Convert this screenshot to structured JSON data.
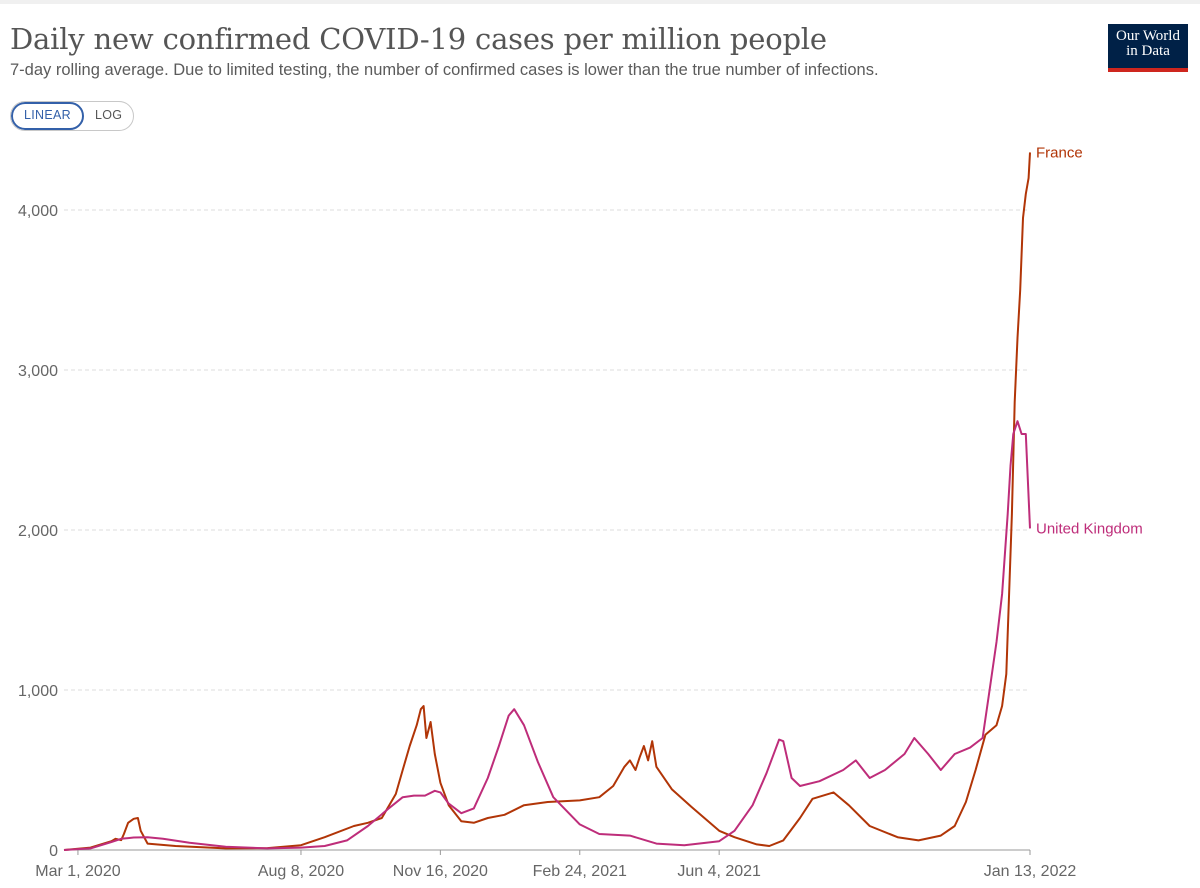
{
  "header": {
    "title": "Daily new confirmed COVID-19 cases per million people",
    "subtitle": "7-day rolling average. Due to limited testing, the number of confirmed cases is lower than the true number of infections.",
    "logo_line1": "Our World",
    "logo_line2": "in Data"
  },
  "controls": {
    "linear_label": "LINEAR",
    "log_label": "LOG",
    "selected": "LINEAR"
  },
  "colors": {
    "france": "#b13507",
    "united_kingdom": "#be2d7a",
    "grid": "#dddddd",
    "logo_bg": "#002147",
    "logo_bar": "#ce261e",
    "accent": "#3360a9"
  },
  "chart_data": {
    "type": "line",
    "title": "Daily new confirmed COVID-19 cases per million people",
    "x_type": "date",
    "xlim": [
      "2020-02-20",
      "2022-01-13"
    ],
    "ylim": [
      0,
      4400
    ],
    "y_ticks": [
      0,
      1000,
      2000,
      3000,
      4000
    ],
    "y_tick_labels": [
      "0",
      "1,000",
      "2,000",
      "3,000",
      "4,000"
    ],
    "x_ticks": [
      "2020-03-01",
      "2020-08-08",
      "2020-11-16",
      "2021-02-24",
      "2021-06-04",
      "2022-01-13"
    ],
    "x_tick_labels": [
      "Mar 1, 2020",
      "Aug 8, 2020",
      "Nov 16, 2020",
      "Feb 24, 2021",
      "Jun 4, 2021",
      "Jan 13, 2022"
    ],
    "grid": "horizontal dashed",
    "legend": "inline labels at line ends (right)",
    "series": [
      {
        "name": "France",
        "color": "#b13507",
        "points": [
          [
            "2020-02-20",
            0
          ],
          [
            "2020-03-10",
            15
          ],
          [
            "2020-03-25",
            55
          ],
          [
            "2020-03-28",
            70
          ],
          [
            "2020-04-01",
            62
          ],
          [
            "2020-04-03",
            100
          ],
          [
            "2020-04-06",
            170
          ],
          [
            "2020-04-10",
            195
          ],
          [
            "2020-04-13",
            200
          ],
          [
            "2020-04-15",
            120
          ],
          [
            "2020-04-20",
            40
          ],
          [
            "2020-05-10",
            25
          ],
          [
            "2020-06-15",
            10
          ],
          [
            "2020-07-15",
            12
          ],
          [
            "2020-08-08",
            30
          ],
          [
            "2020-08-25",
            80
          ],
          [
            "2020-09-15",
            150
          ],
          [
            "2020-09-25",
            170
          ],
          [
            "2020-10-05",
            200
          ],
          [
            "2020-10-15",
            350
          ],
          [
            "2020-10-20",
            500
          ],
          [
            "2020-10-25",
            650
          ],
          [
            "2020-10-30",
            780
          ],
          [
            "2020-11-02",
            880
          ],
          [
            "2020-11-04",
            900
          ],
          [
            "2020-11-06",
            700
          ],
          [
            "2020-11-09",
            800
          ],
          [
            "2020-11-12",
            600
          ],
          [
            "2020-11-16",
            420
          ],
          [
            "2020-11-22",
            280
          ],
          [
            "2020-12-01",
            180
          ],
          [
            "2020-12-10",
            170
          ],
          [
            "2020-12-20",
            200
          ],
          [
            "2021-01-01",
            220
          ],
          [
            "2021-01-15",
            280
          ],
          [
            "2021-02-01",
            300
          ],
          [
            "2021-02-24",
            310
          ],
          [
            "2021-03-10",
            330
          ],
          [
            "2021-03-20",
            400
          ],
          [
            "2021-03-28",
            520
          ],
          [
            "2021-04-01",
            560
          ],
          [
            "2021-04-05",
            500
          ],
          [
            "2021-04-08",
            580
          ],
          [
            "2021-04-11",
            650
          ],
          [
            "2021-04-14",
            560
          ],
          [
            "2021-04-17",
            680
          ],
          [
            "2021-04-20",
            520
          ],
          [
            "2021-05-01",
            380
          ],
          [
            "2021-05-15",
            270
          ],
          [
            "2021-06-04",
            120
          ],
          [
            "2021-06-15",
            80
          ],
          [
            "2021-07-01",
            35
          ],
          [
            "2021-07-10",
            25
          ],
          [
            "2021-07-20",
            60
          ],
          [
            "2021-08-01",
            200
          ],
          [
            "2021-08-10",
            320
          ],
          [
            "2021-08-25",
            360
          ],
          [
            "2021-09-05",
            280
          ],
          [
            "2021-09-20",
            150
          ],
          [
            "2021-10-10",
            80
          ],
          [
            "2021-10-25",
            60
          ],
          [
            "2021-11-10",
            90
          ],
          [
            "2021-11-20",
            150
          ],
          [
            "2021-11-28",
            300
          ],
          [
            "2021-12-05",
            500
          ],
          [
            "2021-12-12",
            720
          ],
          [
            "2021-12-20",
            780
          ],
          [
            "2021-12-24",
            900
          ],
          [
            "2021-12-27",
            1100
          ],
          [
            "2021-12-29",
            1600
          ],
          [
            "2021-12-31",
            2100
          ],
          [
            "2022-01-02",
            2800
          ],
          [
            "2022-01-04",
            3200
          ],
          [
            "2022-01-06",
            3500
          ],
          [
            "2022-01-08",
            3950
          ],
          [
            "2022-01-10",
            4100
          ],
          [
            "2022-01-12",
            4200
          ],
          [
            "2022-01-13",
            4360
          ]
        ]
      },
      {
        "name": "United Kingdom",
        "color": "#be2d7a",
        "points": [
          [
            "2020-02-20",
            0
          ],
          [
            "2020-03-10",
            10
          ],
          [
            "2020-03-25",
            50
          ],
          [
            "2020-04-01",
            70
          ],
          [
            "2020-04-10",
            78
          ],
          [
            "2020-04-20",
            80
          ],
          [
            "2020-05-01",
            70
          ],
          [
            "2020-05-20",
            45
          ],
          [
            "2020-06-15",
            20
          ],
          [
            "2020-07-15",
            10
          ],
          [
            "2020-08-08",
            15
          ],
          [
            "2020-08-25",
            25
          ],
          [
            "2020-09-10",
            60
          ],
          [
            "2020-09-25",
            150
          ],
          [
            "2020-10-10",
            260
          ],
          [
            "2020-10-20",
            330
          ],
          [
            "2020-10-28",
            340
          ],
          [
            "2020-11-05",
            340
          ],
          [
            "2020-11-12",
            370
          ],
          [
            "2020-11-16",
            360
          ],
          [
            "2020-11-22",
            290
          ],
          [
            "2020-12-01",
            230
          ],
          [
            "2020-12-10",
            260
          ],
          [
            "2020-12-20",
            450
          ],
          [
            "2020-12-28",
            650
          ],
          [
            "2021-01-04",
            840
          ],
          [
            "2021-01-08",
            880
          ],
          [
            "2021-01-15",
            780
          ],
          [
            "2021-01-25",
            550
          ],
          [
            "2021-02-05",
            330
          ],
          [
            "2021-02-24",
            160
          ],
          [
            "2021-03-10",
            100
          ],
          [
            "2021-04-01",
            90
          ],
          [
            "2021-04-20",
            40
          ],
          [
            "2021-05-10",
            30
          ],
          [
            "2021-06-04",
            55
          ],
          [
            "2021-06-15",
            120
          ],
          [
            "2021-06-28",
            280
          ],
          [
            "2021-07-08",
            480
          ],
          [
            "2021-07-14",
            620
          ],
          [
            "2021-07-17",
            690
          ],
          [
            "2021-07-20",
            680
          ],
          [
            "2021-07-26",
            450
          ],
          [
            "2021-08-01",
            400
          ],
          [
            "2021-08-15",
            430
          ],
          [
            "2021-09-01",
            500
          ],
          [
            "2021-09-10",
            560
          ],
          [
            "2021-09-20",
            450
          ],
          [
            "2021-10-01",
            500
          ],
          [
            "2021-10-15",
            600
          ],
          [
            "2021-10-22",
            700
          ],
          [
            "2021-11-01",
            600
          ],
          [
            "2021-11-10",
            500
          ],
          [
            "2021-11-20",
            600
          ],
          [
            "2021-12-01",
            640
          ],
          [
            "2021-12-10",
            700
          ],
          [
            "2021-12-15",
            1000
          ],
          [
            "2021-12-20",
            1300
          ],
          [
            "2021-12-24",
            1600
          ],
          [
            "2021-12-28",
            2100
          ],
          [
            "2021-12-30",
            2400
          ],
          [
            "2022-01-01",
            2600
          ],
          [
            "2022-01-04",
            2680
          ],
          [
            "2022-01-07",
            2600
          ],
          [
            "2022-01-10",
            2600
          ],
          [
            "2022-01-13",
            2010
          ]
        ]
      }
    ]
  }
}
